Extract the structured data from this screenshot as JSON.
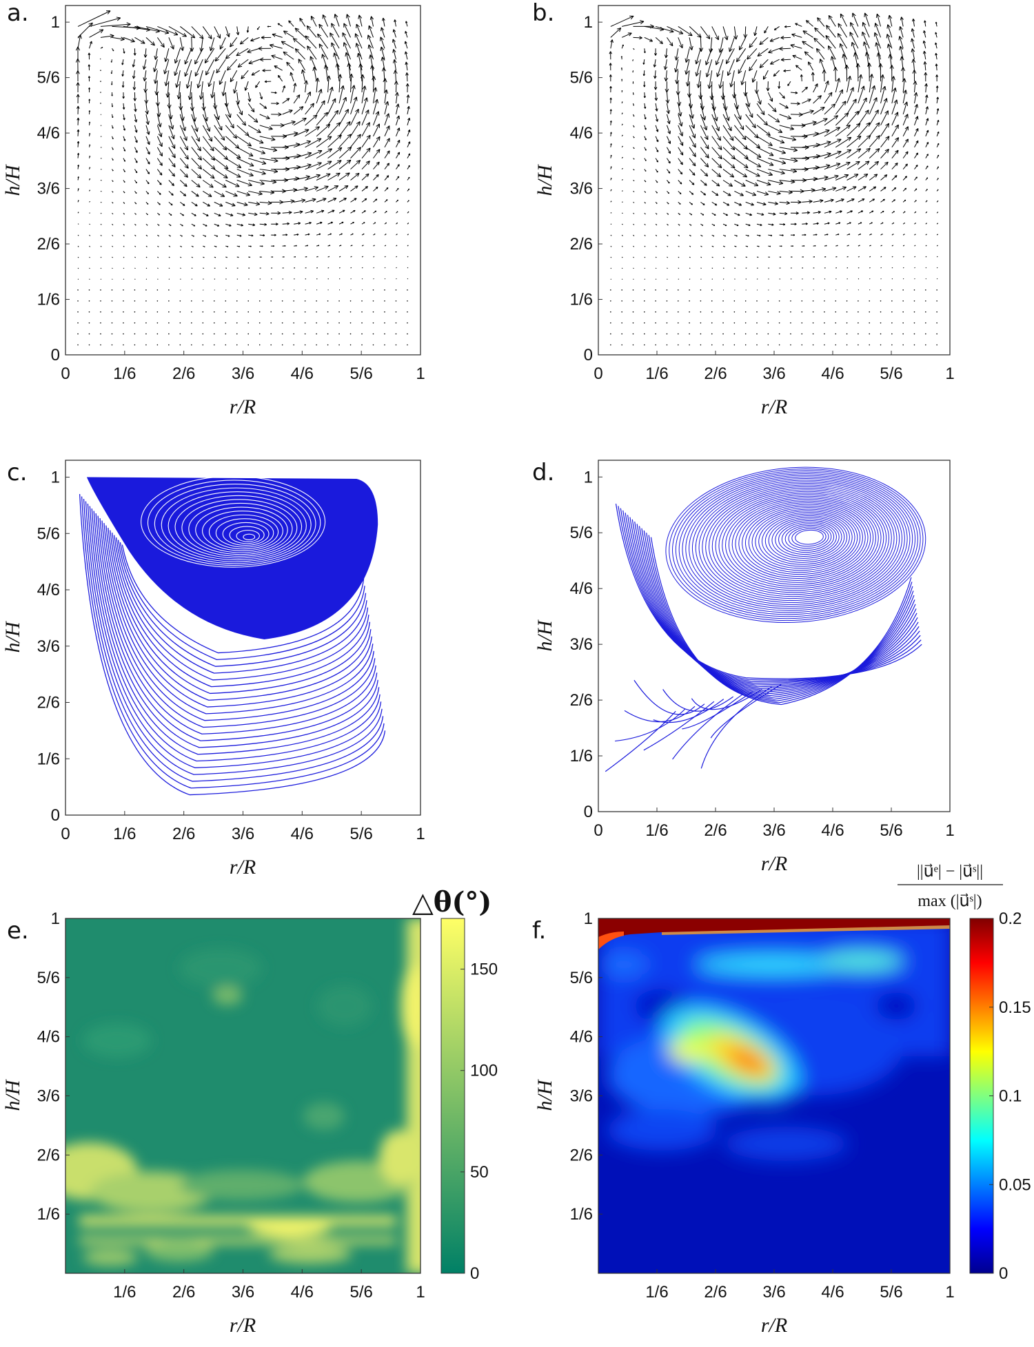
{
  "panels": [
    {
      "id": "a",
      "label": "a.",
      "type": "quiver",
      "xlabel": "r/R",
      "ylabel": "h/H",
      "xticks": [
        "0",
        "1/6",
        "2/6",
        "3/6",
        "4/6",
        "5/6",
        "1"
      ],
      "yticks": [
        "0",
        "1/6",
        "2/6",
        "3/6",
        "4/6",
        "5/6",
        "1"
      ],
      "xlim": [
        0,
        1
      ],
      "ylim": [
        0,
        1.05
      ],
      "vortex_center": [
        0.58,
        0.8
      ]
    },
    {
      "id": "b",
      "label": "b.",
      "type": "quiver",
      "xlabel": "r/R",
      "ylabel": "h/H",
      "xticks": [
        "0",
        "1/6",
        "2/6",
        "3/6",
        "4/6",
        "5/6",
        "1"
      ],
      "yticks": [
        "0",
        "1/6",
        "2/6",
        "3/6",
        "4/6",
        "5/6",
        "1"
      ],
      "xlim": [
        0,
        1
      ],
      "ylim": [
        0,
        1.05
      ],
      "vortex_center": [
        0.55,
        0.82
      ]
    },
    {
      "id": "c",
      "label": "c.",
      "type": "streamlines",
      "color": "#1a1adc",
      "xlabel": "r/R",
      "ylabel": "h/H",
      "xticks": [
        "0",
        "1/6",
        "2/6",
        "3/6",
        "4/6",
        "5/6",
        "1"
      ],
      "yticks": [
        "0",
        "1/6",
        "2/6",
        "3/6",
        "4/6",
        "5/6",
        "1"
      ],
      "xlim": [
        0,
        1
      ],
      "ylim": [
        0,
        1.05
      ],
      "vortex_center": [
        0.51,
        0.82
      ]
    },
    {
      "id": "d",
      "label": "d.",
      "type": "streamlines",
      "color": "#1a1adc",
      "xlabel": "r/R",
      "ylabel": "h/H",
      "xticks": [
        "0",
        "1/6",
        "2/6",
        "3/6",
        "4/6",
        "5/6",
        "1"
      ],
      "yticks": [
        "0",
        "1/6",
        "2/6",
        "3/6",
        "4/6",
        "5/6",
        "1"
      ],
      "xlim": [
        0,
        1
      ],
      "ylim": [
        0,
        1.05
      ],
      "vortex_center": [
        0.6,
        0.82
      ]
    },
    {
      "id": "e",
      "label": "e.",
      "type": "heatmap",
      "xlabel": "r/R",
      "ylabel": "h/H",
      "xticks": [
        "1/6",
        "2/6",
        "3/6",
        "4/6",
        "5/6",
        "1"
      ],
      "yticks": [
        "1/6",
        "2/6",
        "3/6",
        "4/6",
        "5/6",
        "1"
      ],
      "xlim": [
        0,
        1
      ],
      "ylim": [
        0,
        1
      ],
      "colorbar": {
        "title": "△θ(°)",
        "ticks": [
          "0",
          "50",
          "100",
          "150"
        ],
        "range": [
          0,
          175
        ],
        "colormap": "summer"
      }
    },
    {
      "id": "f",
      "label": "f.",
      "type": "heatmap",
      "xlabel": "r/R",
      "ylabel": "h/H",
      "xticks": [
        "1/6",
        "2/6",
        "3/6",
        "4/6",
        "5/6",
        "1"
      ],
      "yticks": [
        "1/6",
        "2/6",
        "3/6",
        "4/6",
        "5/6",
        "1"
      ],
      "xlim": [
        0,
        1
      ],
      "ylim": [
        0,
        1
      ],
      "colorbar": {
        "title_top": "||u⃗ᵉ| − |u⃗ˢ||",
        "title_bottom": "max (|u⃗ˢ|)",
        "ticks": [
          "0",
          "0.05",
          "0.1",
          "0.15",
          "0.2"
        ],
        "range": [
          0,
          0.2
        ],
        "colormap": "jet"
      }
    }
  ]
}
